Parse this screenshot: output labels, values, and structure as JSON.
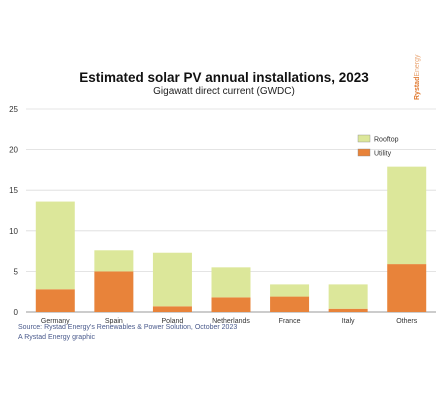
{
  "chart_data": {
    "type": "bar",
    "stacked": true,
    "title": "Estimated solar PV annual installations, 2023",
    "subtitle": "Gigawatt direct current (GWDC)",
    "categories": [
      "Germany",
      "Spain",
      "Poland",
      "Netherlands",
      "France",
      "Italy",
      "Others"
    ],
    "series": [
      {
        "name": "Utility",
        "color": "#e8833a",
        "values": [
          2.8,
          5.0,
          0.7,
          1.8,
          1.9,
          0.4,
          5.9
        ]
      },
      {
        "name": "Rooftop",
        "color": "#dce79a",
        "values": [
          10.8,
          2.6,
          6.6,
          3.7,
          1.5,
          3.0,
          12.0
        ]
      }
    ],
    "legend": {
      "position": "top-right",
      "order": [
        "Rooftop",
        "Utility"
      ]
    },
    "ylim": [
      0,
      25
    ],
    "yticks": [
      "0",
      "5",
      "10",
      "15",
      "20",
      "25"
    ],
    "grid": true,
    "xlabel": "",
    "ylabel": ""
  },
  "brand": {
    "main": "Rystad",
    "thin": "Energy"
  },
  "source": {
    "line1": "Source: Rystad Energy's Renewables & Power Solution, October 2023",
    "line2": "A Rystad Energy graphic"
  }
}
